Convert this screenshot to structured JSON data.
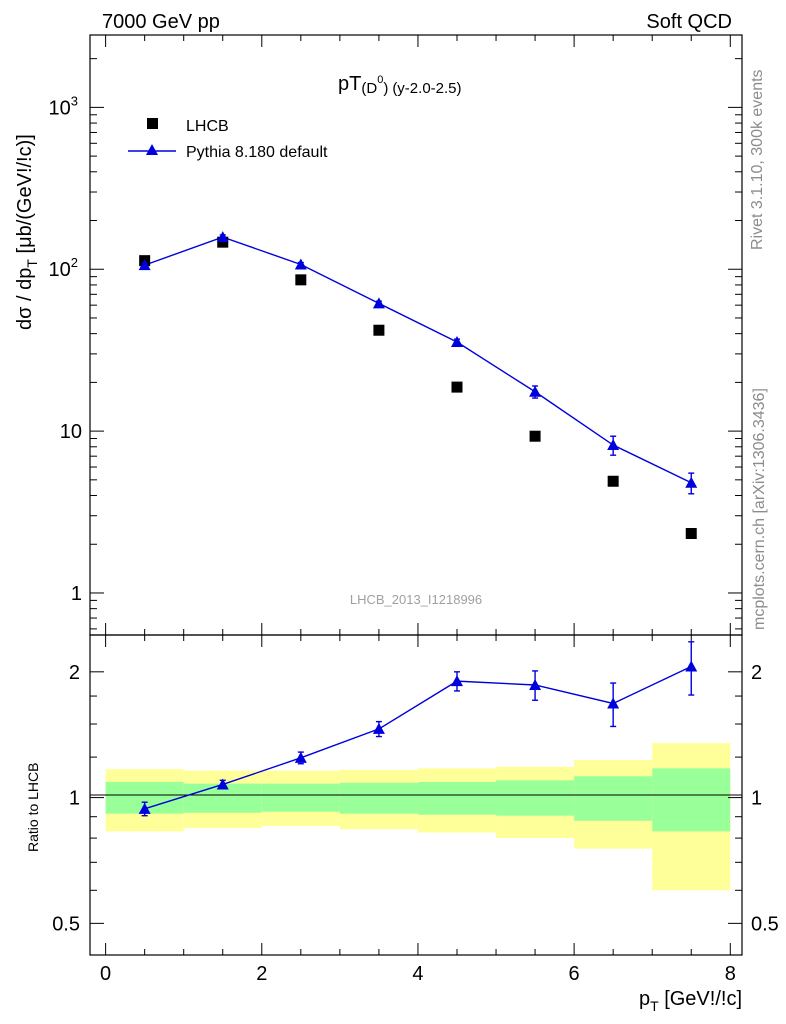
{
  "header": {
    "left": "7000 GeV pp",
    "right": "Soft QCD"
  },
  "side_text": {
    "top": "Rivet 3.1.10,  300k events",
    "bottom": "mcplots.cern.ch [arXiv:1306.3436]"
  },
  "watermark": "LHCB_2013_I1218996",
  "colors": {
    "mc": "#0000dd",
    "data": "#000000",
    "band_inner": "#99ff99",
    "band_outer": "#ffff99"
  },
  "chart_data": [
    {
      "type": "scatter",
      "panel": "main",
      "title_main": "pT",
      "title_particle": "D",
      "title_sup": "0",
      "title_suffix": "(y-2.0-2.5)",
      "xlabel": "p_T [GeV!/!c]",
      "ylabel_pre": "dσ / dp",
      "ylabel_sub": "T",
      "ylabel_post": " [μb/(GeV!/!c)]",
      "yscale": "log",
      "ylim": [
        0.55,
        2800
      ],
      "xlim": [
        -0.2,
        8.15
      ],
      "yticks": [
        {
          "value": 1,
          "base": "1",
          "exp": ""
        },
        {
          "value": 10,
          "base": "10",
          "exp": ""
        },
        {
          "value": 100,
          "base": "10",
          "exp": "2"
        },
        {
          "value": 1000,
          "base": "10",
          "exp": "3"
        }
      ],
      "legend_position": "top-left",
      "series": [
        {
          "name": "LHCB",
          "kind": "data",
          "x": [
            0.5,
            1.5,
            2.5,
            3.5,
            4.5,
            5.5,
            6.5,
            7.5
          ],
          "y": [
            113,
            147,
            86,
            42,
            18.7,
            9.3,
            4.9,
            2.33
          ],
          "err": [
            0,
            0,
            0,
            0,
            0,
            0,
            0,
            0
          ]
        },
        {
          "name": "Pythia 8.180 default",
          "kind": "mc",
          "x": [
            0.5,
            1.5,
            2.5,
            3.5,
            4.5,
            5.5,
            6.5,
            7.5
          ],
          "y": [
            106,
            158,
            107,
            61.5,
            35.5,
            17.5,
            8.2,
            4.8
          ],
          "err": [
            4,
            5,
            3,
            2,
            1.5,
            1.5,
            1.1,
            0.7
          ]
        }
      ]
    },
    {
      "type": "scatter",
      "panel": "ratio",
      "ylabel": "Ratio to LHCB",
      "xlabel_base": "p",
      "xlabel_sub": "T",
      "xlabel_post": " [GeV!/!c]",
      "yscale": "log",
      "ylim": [
        0.42,
        2.45
      ],
      "xlim": [
        -0.2,
        8.15
      ],
      "xticks": [
        "0",
        "2",
        "4",
        "6",
        "8"
      ],
      "yticks": [
        {
          "value": 0.5,
          "label": "0.5"
        },
        {
          "value": 1,
          "label": "1"
        },
        {
          "value": 2,
          "label": "2"
        }
      ],
      "bands": [
        {
          "x0": 0,
          "x1": 1,
          "inner": [
            0.915,
            1.09
          ],
          "outer": [
            0.83,
            1.17
          ]
        },
        {
          "x0": 1,
          "x1": 2,
          "inner": [
            0.92,
            1.08
          ],
          "outer": [
            0.845,
            1.16
          ]
        },
        {
          "x0": 2,
          "x1": 3,
          "inner": [
            0.925,
            1.08
          ],
          "outer": [
            0.855,
            1.16
          ]
        },
        {
          "x0": 3,
          "x1": 4,
          "inner": [
            0.915,
            1.085
          ],
          "outer": [
            0.84,
            1.165
          ]
        },
        {
          "x0": 4,
          "x1": 5,
          "inner": [
            0.91,
            1.09
          ],
          "outer": [
            0.825,
            1.175
          ]
        },
        {
          "x0": 5,
          "x1": 6,
          "inner": [
            0.905,
            1.1
          ],
          "outer": [
            0.8,
            1.185
          ]
        },
        {
          "x0": 6,
          "x1": 7,
          "inner": [
            0.88,
            1.125
          ],
          "outer": [
            0.755,
            1.23
          ]
        },
        {
          "x0": 7,
          "x1": 8,
          "inner": [
            0.83,
            1.175
          ],
          "outer": [
            0.6,
            1.35
          ]
        }
      ],
      "series": [
        {
          "name": "Pythia 8.180 default / LHCB",
          "x": [
            0.5,
            1.5,
            2.5,
            3.5,
            4.5,
            5.5,
            6.5,
            7.5
          ],
          "y": [
            0.94,
            1.075,
            1.245,
            1.46,
            1.9,
            1.86,
            1.68,
            2.06
          ],
          "err": [
            0.035,
            0.025,
            0.04,
            0.06,
            0.1,
            0.15,
            0.2,
            0.3
          ]
        }
      ]
    }
  ]
}
